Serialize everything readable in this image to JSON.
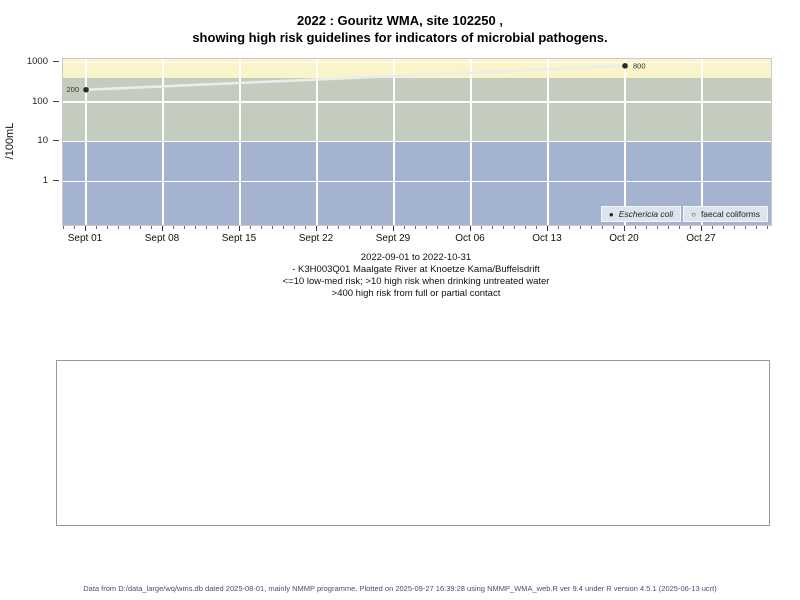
{
  "title": {
    "line1": "2022 : Gouritz WMA, site 102250 ,",
    "line2": "showing high risk guidelines for indicators of microbial pathogens."
  },
  "chart_data": {
    "type": "line",
    "ylabel": "/100mL",
    "y_scale": "log",
    "y_ticks": [
      1000,
      100,
      10,
      1
    ],
    "x_ticks": [
      "Sept 01",
      "Sept 08",
      "Sept 15",
      "Sept 22",
      "Sept 29",
      "Oct 06",
      "Oct 13",
      "Oct 20",
      "Oct 27"
    ],
    "x_minor_tick_interval_days": 1,
    "series": [
      {
        "name": "Eschericia coli",
        "marker": "filled-circle",
        "points": [
          {
            "x": "Sept 01",
            "value": 200,
            "label": "200",
            "label_side": "left"
          },
          {
            "x": "Oct 20",
            "value": 800,
            "label": "800",
            "label_side": "right"
          }
        ]
      },
      {
        "name": "faecal coliforms",
        "marker": "open-circle",
        "points": []
      }
    ],
    "bands": [
      {
        "from": 400,
        "to": "top",
        "color": "#f9f4ca"
      },
      {
        "from": 10,
        "to": 400,
        "color": "#c4cdbd"
      },
      {
        "from": "bottom",
        "to": 10,
        "color": "#a4b4d0"
      }
    ],
    "grid_color": "#ffffff",
    "line_color": "#ececec",
    "point_color": "#2b2b2b",
    "legend_position": "bottom-right",
    "legend": [
      {
        "symbol": "●",
        "label": "Eschericia coli",
        "italic": true
      },
      {
        "symbol": "○",
        "label": "faecal coliforms",
        "italic": false
      }
    ]
  },
  "subtitle": {
    "line1": "2022-09-01 to 2022-10-31",
    "line2": "- K3H003Q01 Maalgate River at Knoetze Kama/Buffelsdrift",
    "line3": "<=10 low-med risk; >10 high risk when drinking untreated water",
    "line4": ">400 high risk from full or partial contact"
  },
  "footer": {
    "text": "Data from D:/data_large/wq/wms.db dated 2025-08-01, mainly NMMP programme. Plotted on 2025-09-27 16:39:28 using NMMP_WMA_web.R ver 9.4 under R version 4.5.1 (2025-06-13 ucrt)"
  }
}
